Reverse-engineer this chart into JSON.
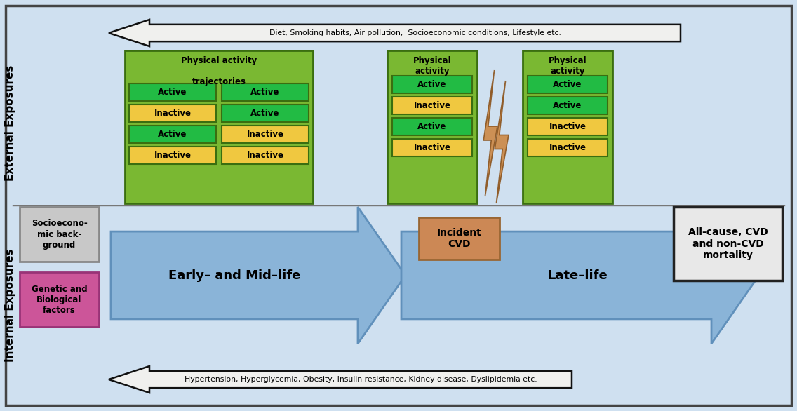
{
  "bg_color": "#cfe0f0",
  "outer_border_color": "#444444",
  "arrow_top_text": "Diet, Smoking habits, Air pollution,  Socioeconomic conditions, Lifestyle etc.",
  "arrow_bottom_text": "Hypertension, Hyperglycemia, Obesity, Insulin resistance, Kidney disease, Dyslipidemia etc.",
  "arrow_color": "#f0f0ee",
  "arrow_outline": "#111111",
  "big_arrow_color": "#8ab4d8",
  "big_arrow_outline": "#6090bb",
  "early_life_label": "Early– and Mid–life",
  "late_life_label": "Late–life",
  "box1_title": "Physical activity\n\ntrajectories",
  "box2_title": "Physical\nactivity",
  "box3_title": "Physical\nactivity",
  "green_box_bg": "#7ab832",
  "green_box_border": "#3a6e10",
  "active_color": "#22bb44",
  "inactive_color": "#f0c840",
  "socio_label": "Socioecono-\nmic back-\nground",
  "genetic_label": "Genetic and\nBiological\nfactors",
  "socio_bg": "#c8c8c8",
  "socio_border": "#888888",
  "genetic_bg": "#cc5599",
  "genetic_border": "#993377",
  "outcome_text": "All-cause, CVD\nand non-CVD\nmortality",
  "outcome_bg": "#e8e8e8",
  "outcome_border": "#222222",
  "cvd_text": "Incident\nCVD",
  "cvd_bg": "#cc8855",
  "cvd_border": "#996633",
  "lightning_color": "#cc8844",
  "ext_label": "External Exposures",
  "int_label": "Internal Exposures"
}
